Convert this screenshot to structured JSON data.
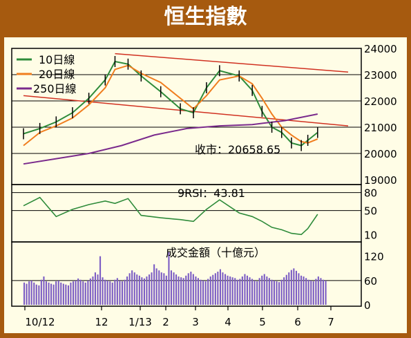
{
  "title": "恒生指數",
  "chart_data": [
    {
      "type": "line",
      "panel": "price",
      "legend": [
        {
          "name": "10日線",
          "color": "#2e8b3a"
        },
        {
          "name": "20日線",
          "color": "#f07d1e"
        },
        {
          "name": "250日線",
          "color": "#7a2a8c"
        }
      ],
      "close_label": "收市：20658.65",
      "close_value": 20658.65,
      "y_ticks": [
        "24000",
        "23000",
        "22000",
        "21000",
        "20000",
        "19000"
      ],
      "ylim": [
        19000,
        24000
      ],
      "x_ticks": [
        "10/12",
        "12",
        "1/13",
        "2",
        "3",
        "4",
        "5",
        "6",
        "7"
      ],
      "grid": "horizontal",
      "trendlines": [
        {
          "from": [
            28,
            23800
          ],
          "to": [
            93,
            23100
          ],
          "color": "#d03020"
        },
        {
          "from": [
            0,
            22200
          ],
          "to": [
            93,
            21050
          ],
          "color": "#d03020"
        }
      ],
      "series": [
        {
          "name": "10日線",
          "color": "#2e8b3a",
          "x": [
            0,
            5,
            10,
            15,
            20,
            25,
            28,
            32,
            36,
            42,
            48,
            52,
            56,
            60,
            66,
            70,
            73,
            76,
            79,
            82,
            85,
            87,
            90
          ],
          "values": [
            20750,
            20950,
            21200,
            21550,
            22100,
            22800,
            23500,
            23400,
            22950,
            22350,
            21700,
            21550,
            22500,
            23150,
            22950,
            22400,
            21600,
            21000,
            20800,
            20400,
            20300,
            20500,
            20800
          ]
        },
        {
          "name": "20日線",
          "color": "#f07d1e",
          "x": [
            0,
            5,
            10,
            15,
            20,
            25,
            28,
            32,
            36,
            42,
            48,
            52,
            56,
            60,
            66,
            70,
            73,
            76,
            79,
            82,
            85,
            87,
            90
          ],
          "values": [
            20300,
            20800,
            21050,
            21350,
            21850,
            22500,
            23200,
            23350,
            23050,
            22700,
            22100,
            21700,
            22200,
            22800,
            22950,
            22650,
            22100,
            21500,
            21000,
            20700,
            20450,
            20400,
            20550
          ]
        },
        {
          "name": "250日線",
          "color": "#7a2a8c",
          "x": [
            0,
            10,
            20,
            30,
            40,
            50,
            60,
            70,
            80,
            90
          ],
          "values": [
            19600,
            19800,
            20000,
            20300,
            20700,
            20950,
            21050,
            21100,
            21250,
            21500
          ]
        }
      ]
    },
    {
      "type": "line",
      "panel": "rsi",
      "label": "9RSI：43.81",
      "value": 43.81,
      "y_ticks": [
        "80",
        "50",
        "10"
      ],
      "ylim": [
        0,
        90
      ],
      "series": [
        {
          "name": "9RSI",
          "color": "#2e8b3a",
          "x": [
            0,
            5,
            10,
            15,
            20,
            25,
            28,
            32,
            36,
            42,
            48,
            52,
            56,
            60,
            66,
            70,
            73,
            76,
            79,
            82,
            85,
            87,
            90
          ],
          "values": [
            58,
            72,
            40,
            52,
            60,
            66,
            62,
            70,
            42,
            38,
            35,
            32,
            52,
            68,
            46,
            40,
            32,
            22,
            18,
            12,
            10,
            20,
            43.81
          ]
        }
      ]
    },
    {
      "type": "bar",
      "panel": "volume",
      "label": "成交金額（十億元）",
      "y_ticks": [
        "120",
        "60",
        "0"
      ],
      "ylim": [
        0,
        140
      ],
      "values": [
        55,
        52,
        58,
        60,
        55,
        50,
        48,
        62,
        70,
        58,
        55,
        52,
        50,
        58,
        60,
        55,
        52,
        50,
        48,
        55,
        58,
        60,
        65,
        62,
        58,
        55,
        60,
        65,
        70,
        80,
        75,
        120,
        68,
        62,
        60,
        58,
        55,
        62,
        66,
        60,
        58,
        62,
        70,
        78,
        85,
        80,
        75,
        72,
        68,
        65,
        70,
        75,
        80,
        100,
        90,
        85,
        80,
        78,
        72,
        130,
        85,
        80,
        75,
        70,
        68,
        66,
        72,
        78,
        82,
        76,
        70,
        66,
        62,
        60,
        58,
        64,
        70,
        74,
        78,
        82,
        88,
        80,
        76,
        72,
        70,
        68,
        66,
        62,
        64,
        70,
        76,
        72,
        68,
        64,
        60,
        58,
        66,
        72,
        76,
        70,
        66,
        62,
        60,
        58,
        56,
        62,
        68,
        74,
        80,
        86,
        90,
        84,
        78,
        72,
        70,
        66,
        62,
        60,
        58,
        64,
        70,
        66,
        62,
        60
      ]
    }
  ]
}
